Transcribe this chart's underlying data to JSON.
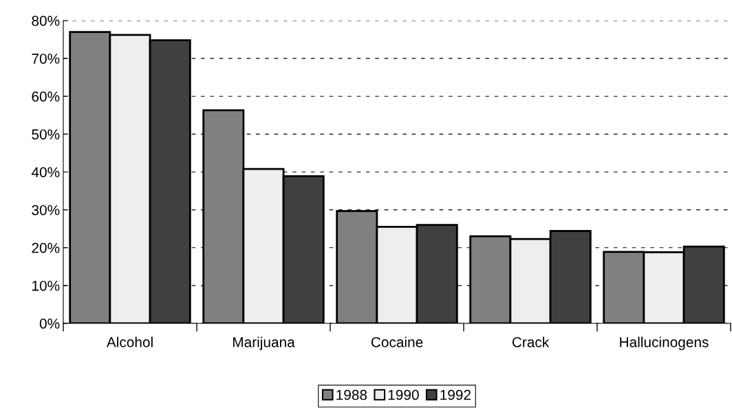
{
  "chart_data": {
    "type": "bar",
    "categories": [
      "Alcohol",
      "Marijuana",
      "Cocaine",
      "Crack",
      "Hallucinogens"
    ],
    "series": [
      {
        "name": "1988",
        "color": "#808080",
        "values": [
          77,
          56.3,
          29.7,
          23,
          18.9
        ]
      },
      {
        "name": "1990",
        "color": "#eeeeee",
        "values": [
          76.2,
          40.8,
          25.5,
          22.3,
          18.8
        ]
      },
      {
        "name": "1992",
        "color": "#404040",
        "values": [
          74.8,
          38.9,
          26,
          24.4,
          20.3
        ]
      }
    ],
    "ylim": [
      0,
      80
    ],
    "yticks": [
      {
        "value": 0,
        "label": "0%"
      },
      {
        "value": 10,
        "label": "10%"
      },
      {
        "value": 20,
        "label": "20%"
      },
      {
        "value": 30,
        "label": "30%"
      },
      {
        "value": 40,
        "label": "40%"
      },
      {
        "value": 50,
        "label": "50%"
      },
      {
        "value": 60,
        "label": "60%"
      },
      {
        "value": 70,
        "label": "70%"
      },
      {
        "value": 80,
        "label": "80%"
      }
    ],
    "grid": "y",
    "legend": "bottom"
  }
}
